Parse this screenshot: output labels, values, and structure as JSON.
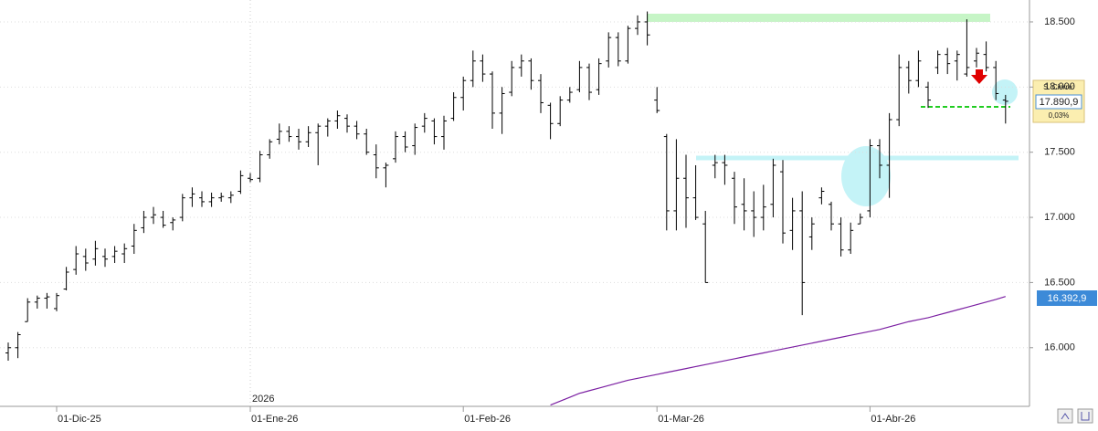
{
  "chart_data": {
    "type": "ohlc",
    "categories": [
      null,
      null,
      null,
      null,
      null,
      "01-Dic-25",
      null,
      null,
      null,
      null,
      null,
      null,
      null,
      null,
      null,
      null,
      null,
      null,
      null,
      null,
      null,
      null,
      null,
      null,
      null,
      "01-Ene-26",
      null,
      null,
      null,
      null,
      null,
      null,
      null,
      null,
      null,
      null,
      null,
      null,
      null,
      null,
      null,
      null,
      null,
      null,
      null,
      null,
      null,
      "01-Feb-26",
      null,
      null,
      null,
      null,
      null,
      null,
      null,
      null,
      null,
      null,
      null,
      null,
      null,
      null,
      null,
      null,
      null,
      null,
      null,
      "01-Mar-26",
      null,
      null,
      null,
      null,
      null,
      null,
      null,
      null,
      null,
      null,
      null,
      null,
      null,
      null,
      null,
      null,
      null,
      null,
      null,
      null,
      null,
      "01-Abr-26",
      null,
      null,
      null,
      null,
      null,
      null,
      null,
      null,
      null,
      null,
      null,
      null,
      null,
      null
    ],
    "year_label": "2026",
    "open": [
      15960,
      16000,
      16200,
      16350,
      16380,
      16300,
      16450,
      16600,
      16700,
      16680,
      16700,
      16700,
      16720,
      16780,
      16920,
      17000,
      17000,
      16960,
      17000,
      17150,
      17150,
      17120,
      17150,
      17150,
      17200,
      17300,
      17300,
      17480,
      17600,
      17660,
      17620,
      17580,
      17650,
      17700,
      17740,
      17760,
      17700,
      17640,
      17480,
      17380,
      17450,
      17620,
      17550,
      17700,
      17740,
      17620,
      17760,
      17920,
      18050,
      18200,
      18100,
      17800,
      17960,
      18150,
      18200,
      18050,
      17860,
      17720,
      17900,
      17980,
      18150,
      17980,
      18200,
      18380,
      18200,
      18450,
      18500,
      17900,
      17620,
      17050,
      17300,
      17150,
      16950,
      17400,
      17420,
      17300,
      17100,
      17050,
      17000,
      17100,
      17350,
      16900,
      17050,
      16850,
      17150,
      17100,
      16950,
      16750,
      16950,
      17050,
      17550,
      17400,
      17750,
      18150,
      18050,
      18000,
      18150,
      18250,
      18200,
      18100,
      18200,
      18250,
      18150,
      17900
    ],
    "high": [
      16040,
      16120,
      16380,
      16400,
      16420,
      16420,
      16620,
      16780,
      16760,
      16820,
      16760,
      16780,
      16800,
      16950,
      17050,
      17080,
      17050,
      17000,
      17180,
      17230,
      17200,
      17190,
      17190,
      17200,
      17360,
      17340,
      17510,
      17600,
      17720,
      17700,
      17680,
      17700,
      17720,
      17760,
      17820,
      17790,
      17740,
      17680,
      17560,
      17420,
      17660,
      17660,
      17720,
      17800,
      17760,
      17780,
      17960,
      18080,
      18280,
      18250,
      18120,
      18000,
      18200,
      18250,
      18220,
      18100,
      17880,
      17930,
      18000,
      18200,
      18180,
      18220,
      18420,
      18420,
      18470,
      18550,
      18580,
      18000,
      17640,
      17600,
      17480,
      17400,
      17050,
      17480,
      17480,
      17350,
      17300,
      17200,
      17250,
      17450,
      17440,
      17150,
      17200,
      17000,
      17230,
      17120,
      17000,
      16960,
      17030,
      17600,
      17600,
      17800,
      18250,
      18200,
      18280,
      18040,
      18280,
      18300,
      18280,
      18520,
      18300,
      18350,
      18200,
      17940
    ],
    "low": [
      15900,
      15920,
      16200,
      16300,
      16300,
      16280,
      16440,
      16560,
      16590,
      16630,
      16620,
      16650,
      16650,
      16720,
      16880,
      16950,
      16920,
      16900,
      16970,
      17080,
      17080,
      17080,
      17120,
      17110,
      17180,
      17270,
      17270,
      17450,
      17560,
      17580,
      17520,
      17540,
      17400,
      17620,
      17680,
      17650,
      17600,
      17480,
      17300,
      17230,
      17420,
      17500,
      17480,
      17650,
      17560,
      17520,
      17740,
      17820,
      18000,
      18040,
      17680,
      17640,
      17930,
      18080,
      17980,
      17800,
      17600,
      17700,
      17880,
      17960,
      17900,
      17940,
      18150,
      18160,
      18180,
      18400,
      18320,
      17800,
      16900,
      16900,
      16920,
      16980,
      16500,
      17300,
      17250,
      16950,
      16900,
      16850,
      16900,
      17000,
      16800,
      16750,
      16250,
      16750,
      17100,
      16900,
      16700,
      16720,
      16950,
      17000,
      17300,
      17150,
      17700,
      17950,
      18000,
      17840,
      18100,
      18100,
      18050,
      18080,
      18150,
      18120,
      17900,
      17720
    ],
    "close": [
      16000,
      16100,
      16350,
      16380,
      16390,
      16400,
      16580,
      16720,
      16650,
      16760,
      16680,
      16740,
      16760,
      16900,
      17000,
      17020,
      16940,
      16980,
      17150,
      17180,
      17120,
      17150,
      17160,
      17170,
      17320,
      17290,
      17480,
      17580,
      17660,
      17620,
      17580,
      17650,
      17700,
      17740,
      17780,
      17700,
      17640,
      17500,
      17380,
      17400,
      17620,
      17540,
      17690,
      17760,
      17620,
      17740,
      17920,
      18050,
      18200,
      18100,
      17800,
      17950,
      18150,
      18200,
      18050,
      17880,
      17720,
      17900,
      17960,
      18150,
      17960,
      18180,
      18380,
      18200,
      18450,
      18500,
      18400,
      17820,
      17050,
      17300,
      17150,
      17000,
      16500,
      17420,
      17400,
      17080,
      17050,
      17000,
      17080,
      17400,
      16880,
      17050,
      16500,
      16950,
      17200,
      16950,
      16750,
      16900,
      17000,
      17550,
      17400,
      17750,
      18150,
      18050,
      18200,
      17900,
      18250,
      18180,
      18250,
      18150,
      18260,
      18150,
      17950,
      17890.9
    ],
    "moving_average": {
      "color": "#7b1fa2",
      "values": [
        null,
        null,
        null,
        null,
        null,
        null,
        null,
        null,
        null,
        null,
        null,
        null,
        null,
        null,
        null,
        null,
        null,
        null,
        null,
        null,
        null,
        null,
        null,
        null,
        null,
        null,
        null,
        null,
        null,
        null,
        null,
        null,
        null,
        null,
        null,
        null,
        null,
        null,
        null,
        null,
        null,
        null,
        null,
        null,
        null,
        null,
        null,
        null,
        null,
        null,
        null,
        null,
        null,
        null,
        null,
        null,
        15560,
        15590,
        15620,
        15650,
        15670,
        15690,
        15710,
        15730,
        15750,
        15765,
        15780,
        15795,
        15810,
        15825,
        15840,
        15855,
        15870,
        15885,
        15900,
        15915,
        15930,
        15945,
        15960,
        15975,
        15990,
        16005,
        16020,
        16035,
        16050,
        16065,
        16080,
        16095,
        16110,
        16125,
        16140,
        16160,
        16180,
        16200,
        16215,
        16230,
        16250,
        16270,
        16290,
        16310,
        16330,
        16350,
        16370,
        16392.9
      ],
      "last_label": "16.392,9"
    },
    "last_close": {
      "title": "S. Cierre:",
      "value": 17890.9,
      "label": "17.890,9",
      "change": 0.03,
      "change_label": "0,03%"
    },
    "color": "#000000",
    "ylim": [
      15550,
      18668
    ],
    "yticks": [
      {
        "value": 16000,
        "label": "16.000"
      },
      {
        "value": 16500,
        "label": "16.500"
      },
      {
        "value": 17000,
        "label": "17.000"
      },
      {
        "value": 17500,
        "label": "17.500"
      },
      {
        "value": 18000,
        "label": "18.000"
      },
      {
        "value": 18500,
        "label": "18.500"
      }
    ],
    "grid": true
  }
}
